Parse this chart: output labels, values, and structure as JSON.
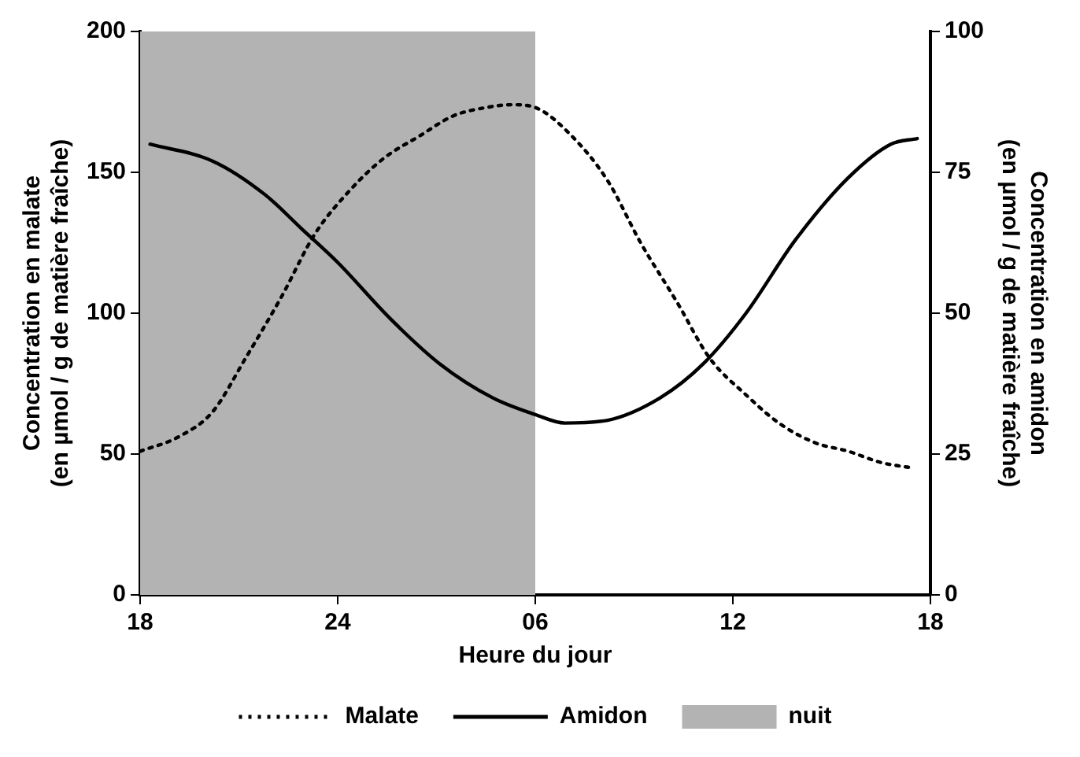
{
  "chart_data": {
    "type": "line",
    "xlabel": "Heure du jour",
    "ylabel": "Concentration en malate\n(en µmol / g de matière fraîche)",
    "y2label": "Concentration en amidon\n(en µmol / g de matière fraîche)",
    "xlim": [
      "--01-01T18:00",
      "--01-02T18:00"
    ],
    "xticks": [
      {
        "value": "--01-01T18:00",
        "label": "18"
      },
      {
        "value": "--01-02T00:00",
        "label": "24"
      },
      {
        "value": "--01-02T06:00",
        "label": "06"
      },
      {
        "value": "--01-02T12:00",
        "label": "12"
      },
      {
        "value": "--01-02T18:00",
        "label": "18"
      }
    ],
    "ylim": [
      0,
      200
    ],
    "yticks": [
      0,
      50,
      100,
      150,
      200
    ],
    "y2lim": [
      0,
      100
    ],
    "y2ticks": [
      0,
      25,
      50,
      75,
      100
    ],
    "bands": [
      {
        "axis": "x",
        "from": "--01-01T18:00",
        "to": "--01-02T06:00",
        "label": "nuit",
        "color": "#b3b3b3"
      }
    ],
    "legend": "bottom",
    "grid": false,
    "marker": "none",
    "series": [
      {
        "name": "Malate",
        "color": "#000000",
        "line_style": "dotted",
        "x": [
          "--01-01T18:00",
          "--01-01T19:09",
          "--01-01T20:12",
          "--01-01T21:12",
          "--01-01T22:18",
          "--01-01T23:18",
          "--01-02T00:24",
          "--01-02T01:24",
          "--01-02T02:30",
          "--01-02T03:30",
          "--01-02T04:30",
          "--01-02T05:18",
          "--01-02T06:00",
          "--01-02T07:06",
          "--01-02T08:12",
          "--01-02T09:12",
          "--01-02T10:18",
          "--01-02T11:18",
          "--01-02T12:24",
          "--01-02T13:24",
          "--01-02T14:30",
          "--01-02T15:30",
          "--01-02T16:30",
          "--01-02T17:30"
        ],
        "values": [
          51,
          56,
          65,
          84,
          106,
          128,
          144,
          155,
          163,
          170,
          173,
          174,
          173,
          163,
          147,
          125,
          104,
          84,
          71,
          61,
          54,
          51,
          47,
          45
        ]
      },
      {
        "name": "Amidon",
        "color": "#000000",
        "line_style": "solid",
        "axis": "y2",
        "x": [
          "--01-01T18:18",
          "--01-01T20:12",
          "--01-01T21:48",
          "--01-01T22:54",
          "--01-02T00:00",
          "--01-02T01:36",
          "--01-02T03:06",
          "--01-02T04:42",
          "--01-02T06:00",
          "--01-02T06:54",
          "--01-02T08:12",
          "--01-02T09:48",
          "--01-02T11:06",
          "--01-02T12:24",
          "--01-02T13:54",
          "--01-02T15:30",
          "--01-02T16:48",
          "--01-02T17:36"
        ],
        "values": [
          80,
          77,
          71,
          65,
          59,
          49,
          41,
          35,
          32,
          30.5,
          31,
          35,
          41,
          50,
          63,
          74,
          80,
          81
        ]
      }
    ]
  }
}
